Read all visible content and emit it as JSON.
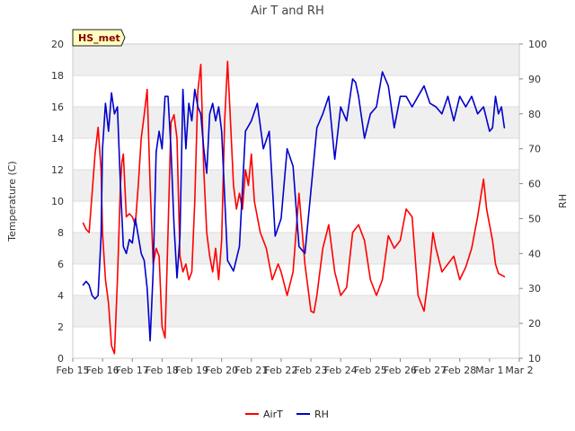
{
  "chart_data": {
    "type": "line",
    "title": "Air T and RH",
    "station_label": "HS_met",
    "xlabel": "",
    "ylabel_left": "Temperature (C)",
    "ylabel_right": "RH",
    "x_range": [
      0,
      15
    ],
    "ylim_left": [
      0,
      20
    ],
    "ylim_right": [
      10,
      100
    ],
    "x_tick_values": [
      0,
      1,
      2,
      3,
      4,
      5,
      6,
      7,
      8,
      9,
      10,
      11,
      12,
      13,
      14,
      15
    ],
    "x_tick_labels": [
      "Feb 15",
      "Feb 16",
      "Feb 17",
      "Feb 18",
      "Feb 19",
      "Feb 20",
      "Feb 21",
      "Feb 22",
      "Feb 23",
      "Feb 24",
      "Feb 25",
      "Feb 26",
      "Feb 27",
      "Feb 28",
      "Mar 1",
      "Mar 2"
    ],
    "y_left_ticks": [
      0,
      2,
      4,
      6,
      8,
      10,
      12,
      14,
      16,
      18,
      20
    ],
    "y_right_ticks": [
      10,
      20,
      30,
      40,
      50,
      60,
      70,
      80,
      90,
      100
    ],
    "legend": [
      "AirT",
      "RH"
    ],
    "colors": {
      "AirT": "#ff0000",
      "RH": "#0000cc",
      "band": "#efefef",
      "grid": "#dcdcdc"
    },
    "series": [
      {
        "name": "AirT",
        "axis": "left",
        "color": "#ff0000",
        "x": [
          0.35,
          0.45,
          0.55,
          0.65,
          0.75,
          0.85,
          0.95,
          1.0,
          1.1,
          1.2,
          1.3,
          1.4,
          1.5,
          1.55,
          1.6,
          1.65,
          1.7,
          1.8,
          1.9,
          2.0,
          2.1,
          2.2,
          2.3,
          2.4,
          2.5,
          2.6,
          2.7,
          2.8,
          2.9,
          3.0,
          3.1,
          3.2,
          3.3,
          3.4,
          3.5,
          3.6,
          3.7,
          3.8,
          3.9,
          4.0,
          4.1,
          4.2,
          4.3,
          4.4,
          4.5,
          4.6,
          4.7,
          4.8,
          4.9,
          5.0,
          5.1,
          5.2,
          5.3,
          5.4,
          5.5,
          5.6,
          5.7,
          5.8,
          5.9,
          6.0,
          6.1,
          6.2,
          6.3,
          6.4,
          6.5,
          6.6,
          6.7,
          6.8,
          6.9,
          7.0,
          7.2,
          7.4,
          7.6,
          7.8,
          8.0,
          8.1,
          8.2,
          8.4,
          8.6,
          8.8,
          9.0,
          9.2,
          9.4,
          9.6,
          9.8,
          10.0,
          10.2,
          10.4,
          10.6,
          10.8,
          11.0,
          11.2,
          11.4,
          11.6,
          11.8,
          12.0,
          12.1,
          12.2,
          12.4,
          12.6,
          12.8,
          13.0,
          13.2,
          13.4,
          13.6,
          13.8,
          13.9,
          14.0,
          14.1,
          14.2,
          14.3,
          14.4,
          14.5
        ],
        "y": [
          8.6,
          8.2,
          8.0,
          10.5,
          13.0,
          14.7,
          12.0,
          8.0,
          5.0,
          3.5,
          0.8,
          0.3,
          5.0,
          8.0,
          11.0,
          12.5,
          13.0,
          9.0,
          9.2,
          9.0,
          8.5,
          11.0,
          14.0,
          15.5,
          17.1,
          11.0,
          6.0,
          7.0,
          6.5,
          2.0,
          1.3,
          8.0,
          15.0,
          15.5,
          14.0,
          6.5,
          5.5,
          6.0,
          5.0,
          5.5,
          10.0,
          17.0,
          18.7,
          12.0,
          8.0,
          6.5,
          5.5,
          7.0,
          5.0,
          7.5,
          15.0,
          18.9,
          15.0,
          11.0,
          9.5,
          10.5,
          9.5,
          12.0,
          11.0,
          13.0,
          10.0,
          9.0,
          8.0,
          7.5,
          7.0,
          6.0,
          5.0,
          5.5,
          6.0,
          5.5,
          4.0,
          5.5,
          10.5,
          6.0,
          3.0,
          2.9,
          4.0,
          7.0,
          8.5,
          5.5,
          4.0,
          4.5,
          8.0,
          8.5,
          7.5,
          5.0,
          4.0,
          5.0,
          7.8,
          7.0,
          7.5,
          9.5,
          9.0,
          4.0,
          3.0,
          6.0,
          8.0,
          7.0,
          5.5,
          6.0,
          6.5,
          5.0,
          5.8,
          7.0,
          9.0,
          11.4,
          9.5,
          8.5,
          7.5,
          6.0,
          5.4,
          5.3,
          5.2
        ]
      },
      {
        "name": "RH",
        "axis": "right",
        "color": "#0000cc",
        "x": [
          0.35,
          0.45,
          0.55,
          0.65,
          0.75,
          0.85,
          0.95,
          1.0,
          1.1,
          1.2,
          1.3,
          1.4,
          1.5,
          1.6,
          1.7,
          1.8,
          1.9,
          2.0,
          2.1,
          2.2,
          2.3,
          2.4,
          2.5,
          2.6,
          2.7,
          2.8,
          2.9,
          3.0,
          3.1,
          3.2,
          3.3,
          3.4,
          3.5,
          3.6,
          3.7,
          3.8,
          3.9,
          4.0,
          4.1,
          4.2,
          4.3,
          4.4,
          4.5,
          4.6,
          4.7,
          4.8,
          4.9,
          5.0,
          5.2,
          5.4,
          5.6,
          5.8,
          6.0,
          6.2,
          6.4,
          6.6,
          6.8,
          7.0,
          7.2,
          7.4,
          7.6,
          7.8,
          8.0,
          8.2,
          8.4,
          8.6,
          8.8,
          9.0,
          9.2,
          9.4,
          9.5,
          9.6,
          9.8,
          10.0,
          10.2,
          10.4,
          10.6,
          10.8,
          11.0,
          11.2,
          11.4,
          11.6,
          11.8,
          12.0,
          12.2,
          12.4,
          12.6,
          12.8,
          13.0,
          13.2,
          13.4,
          13.6,
          13.8,
          14.0,
          14.1,
          14.2,
          14.3,
          14.4,
          14.5
        ],
        "y": [
          31,
          32,
          31,
          28,
          27,
          28,
          45,
          70,
          83,
          75,
          86,
          80,
          82,
          60,
          42,
          40,
          44,
          43,
          50,
          45,
          40,
          38,
          30,
          15,
          35,
          69,
          75,
          70,
          85,
          85,
          70,
          48,
          33,
          45,
          87,
          70,
          83,
          78,
          87,
          82,
          80,
          70,
          63,
          80,
          83,
          78,
          82,
          75,
          38,
          35,
          42,
          75,
          78,
          83,
          70,
          75,
          45,
          50,
          70,
          65,
          42,
          40,
          58,
          76,
          80,
          85,
          67,
          82,
          78,
          90,
          89,
          85,
          73,
          80,
          82,
          92,
          88,
          76,
          85,
          85,
          82,
          85,
          88,
          83,
          82,
          80,
          85,
          78,
          85,
          82,
          85,
          80,
          82,
          75,
          76,
          85,
          80,
          82,
          76
        ]
      }
    ]
  }
}
